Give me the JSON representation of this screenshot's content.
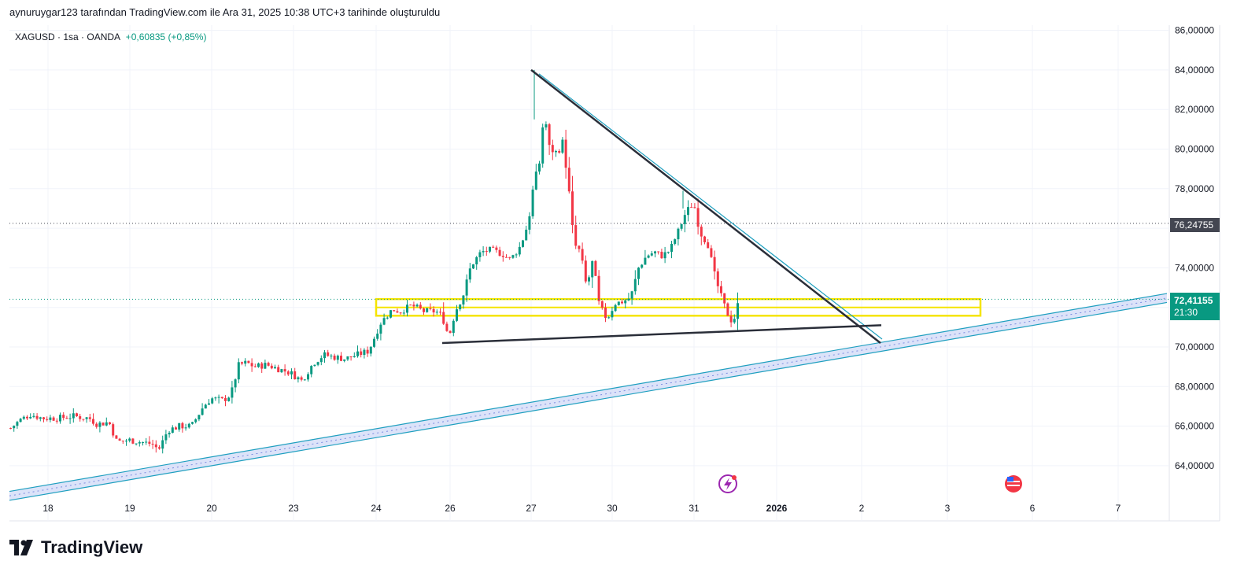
{
  "header": {
    "snapshot_text": "aynuruygar123 tarafından TradingView.com ile Ara 31, 2025 10:38 UTC+3 tarihinde oluşturuldu"
  },
  "legend": {
    "symbol": "XAGUSD · 1sa · OANDA",
    "change": "+0,60835 (+0,85%)"
  },
  "price_axis": {
    "ticks": [
      "86,00000",
      "84,00000",
      "82,00000",
      "80,00000",
      "78,00000",
      "74,00000",
      "70,00000",
      "68,00000",
      "66,00000",
      "64,00000"
    ],
    "marker_price": "76,24755",
    "last_price": "72,41155",
    "countdown": "21:30"
  },
  "time_axis": {
    "ticks": [
      "18",
      "19",
      "20",
      "23",
      "24",
      "26",
      "27",
      "30",
      "31",
      "2026",
      "2",
      "3",
      "6",
      "7"
    ]
  },
  "footer": {
    "brand": "TradingView"
  },
  "icons": [
    "lightning-event-icon",
    "us-flag-event-icon",
    "tradingview-logo-icon"
  ],
  "colors": {
    "up": "#089981",
    "down": "#f23645",
    "zone": "#f5e400",
    "trendline": "#2a2e39",
    "channel": "#1e9fbf",
    "channel_fill": "#d6def8",
    "price_badge": "#089981",
    "marker_badge": "#434651"
  },
  "chart_data": {
    "type": "candlestick",
    "title": "",
    "symbol": "XAGUSD",
    "interval": "1sa",
    "ylim": [
      62.5,
      86.5
    ],
    "y_scale": "linear",
    "grid": true,
    "x_ticks": [
      "18",
      "19",
      "20",
      "23",
      "24",
      "26",
      "27",
      "30",
      "31",
      "2026",
      "2",
      "3",
      "6",
      "7"
    ],
    "y_ticks": [
      64,
      66,
      68,
      70,
      72,
      74,
      76,
      78,
      80,
      82,
      84,
      86
    ],
    "last_price": 72.41155,
    "horizontal_marker": 76.24755,
    "series": [
      {
        "anchors": [
          [
            0,
            65.9
          ],
          [
            12,
            66.3
          ],
          [
            25,
            66.6
          ],
          [
            40,
            66.4
          ],
          [
            60,
            66.4
          ],
          [
            80,
            66.5
          ],
          [
            100,
            66.4
          ],
          [
            110,
            66.1
          ],
          [
            125,
            66.2
          ],
          [
            135,
            65.2
          ],
          [
            150,
            65.3
          ],
          [
            165,
            65.2
          ],
          [
            180,
            65.1
          ],
          [
            188,
            64.8
          ],
          [
            200,
            65.8
          ],
          [
            215,
            66.0
          ],
          [
            230,
            66.0
          ],
          [
            245,
            67.0
          ],
          [
            255,
            67.4
          ],
          [
            270,
            67.3
          ],
          [
            280,
            67.6
          ],
          [
            290,
            69.1
          ],
          [
            300,
            69.2
          ],
          [
            310,
            69.0
          ],
          [
            325,
            69.1
          ],
          [
            340,
            68.9
          ],
          [
            355,
            68.7
          ],
          [
            370,
            68.3
          ],
          [
            385,
            69.2
          ],
          [
            398,
            69.6
          ],
          [
            410,
            69.5
          ],
          [
            425,
            69.4
          ],
          [
            440,
            69.6
          ],
          [
            455,
            69.8
          ],
          [
            470,
            71.2
          ],
          [
            485,
            71.9
          ],
          [
            495,
            71.8
          ],
          [
            510,
            72.1
          ],
          [
            525,
            71.8
          ],
          [
            540,
            71.8
          ],
          [
            548,
            71.6
          ],
          [
            557,
            70.5
          ],
          [
            565,
            71.8
          ],
          [
            575,
            72.6
          ],
          [
            585,
            74.1
          ],
          [
            598,
            74.8
          ],
          [
            610,
            74.9
          ],
          [
            625,
            74.7
          ],
          [
            635,
            74.4
          ],
          [
            648,
            75.1
          ],
          [
            658,
            76.3
          ],
          [
            665,
            78.3
          ],
          [
            672,
            79.3
          ],
          [
            678,
            81.9
          ],
          [
            685,
            80.0
          ],
          [
            695,
            79.8
          ],
          [
            702,
            80.4
          ],
          [
            710,
            77.7
          ],
          [
            716,
            75.2
          ],
          [
            724,
            74.8
          ],
          [
            732,
            73.0
          ],
          [
            740,
            74.4
          ],
          [
            748,
            72.1
          ],
          [
            758,
            71.4
          ],
          [
            768,
            72.2
          ],
          [
            778,
            72.3
          ],
          [
            788,
            72.5
          ],
          [
            798,
            74.0
          ],
          [
            808,
            74.6
          ],
          [
            818,
            74.8
          ],
          [
            828,
            74.6
          ],
          [
            838,
            74.9
          ],
          [
            848,
            75.8
          ],
          [
            858,
            76.8
          ],
          [
            868,
            77.3
          ],
          [
            876,
            75.8
          ],
          [
            886,
            75.2
          ],
          [
            896,
            73.4
          ],
          [
            905,
            72.3
          ],
          [
            912,
            71.6
          ],
          [
            918,
            71.2
          ],
          [
            926,
            72.41
          ]
        ],
        "open_price_index_note": ""
      }
    ],
    "zone": {
      "price_top": 72.42,
      "price_bottom": 71.58
    },
    "trendlines": [
      {
        "from": [
          "27",
          84.0
        ],
        "to": [
          "2",
          70.2
        ]
      },
      {
        "from": [
          "26",
          70.2
        ],
        "to": [
          "2",
          71.1
        ]
      }
    ],
    "channel": {
      "from": [
        "17",
        62.7
      ],
      "to": [
        "7",
        72.7
      ],
      "width": 0.45
    }
  }
}
